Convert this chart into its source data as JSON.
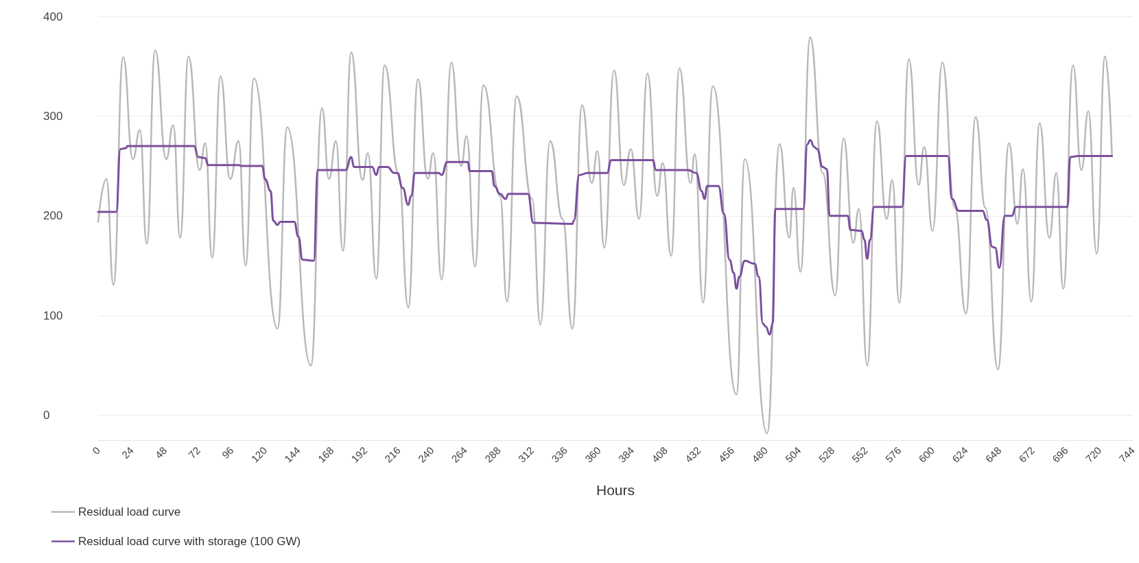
{
  "chart_data": {
    "type": "line",
    "xlabel": "Hours",
    "xlim": [
      0,
      744
    ],
    "xticks": [
      0,
      24,
      48,
      72,
      96,
      120,
      144,
      168,
      192,
      216,
      240,
      264,
      288,
      312,
      336,
      360,
      384,
      408,
      432,
      456,
      480,
      504,
      528,
      552,
      576,
      600,
      624,
      648,
      672,
      696,
      720,
      744
    ],
    "ylim": [
      -25,
      400
    ],
    "yticks": [
      0,
      100,
      200,
      300,
      400
    ],
    "grid": "y",
    "legend": "bottom left",
    "marker": "none",
    "series": [
      {
        "name": "Residual load curve",
        "color": "#b8b8b8",
        "x": [
          0,
          6,
          11,
          18,
          25,
          30,
          35,
          41,
          49,
          54,
          59,
          65,
          73,
          77,
          82,
          88,
          95,
          101,
          106,
          112,
          129,
          136,
          153,
          161,
          166,
          171,
          176,
          182,
          190,
          194,
          200,
          206,
          216,
          223,
          230,
          237,
          241,
          247,
          254,
          261,
          265,
          271,
          277,
          289,
          294,
          301,
          312,
          318,
          325,
          334,
          341,
          348,
          355,
          359,
          364,
          371,
          378,
          383,
          389,
          395,
          402,
          406,
          412,
          418,
          426,
          429,
          435,
          442,
          459,
          465,
          481,
          490,
          497,
          500,
          505,
          512,
          521,
          530,
          536,
          543,
          547,
          553,
          560,
          567,
          571,
          576,
          583,
          590,
          594,
          600,
          607,
          616,
          624,
          631,
          638,
          647,
          655,
          661,
          665,
          671,
          677,
          684,
          689,
          694,
          701,
          707,
          712,
          718,
          724,
          729
        ],
        "values": [
          194,
          237,
          131,
          359,
          257,
          286,
          172,
          366,
          257,
          291,
          178,
          360,
          246,
          273,
          158,
          340,
          237,
          275,
          150,
          338,
          87,
          289,
          50,
          308,
          237,
          275,
          165,
          364,
          236,
          263,
          137,
          351,
          243,
          108,
          337,
          237,
          263,
          136,
          354,
          250,
          280,
          149,
          331,
          220,
          114,
          320,
          217,
          91,
          275,
          197,
          87,
          311,
          233,
          265,
          168,
          346,
          231,
          267,
          197,
          343,
          220,
          253,
          160,
          348,
          233,
          262,
          113,
          330,
          21,
          257,
          -18,
          272,
          178,
          228,
          144,
          379,
          243,
          120,
          278,
          173,
          207,
          50,
          295,
          197,
          236,
          113,
          357,
          231,
          269,
          185,
          354,
          208,
          102,
          299,
          208,
          46,
          273,
          192,
          247,
          114,
          293,
          178,
          243,
          127,
          351,
          246,
          305,
          162,
          360,
          260
        ]
      },
      {
        "name": "Residual load curve with storage (100 GW)",
        "color": "#7b4f9d",
        "x": [
          0,
          13,
          16,
          20,
          21,
          69,
          72,
          77,
          79,
          101,
          103,
          118,
          120,
          124,
          126,
          129,
          131,
          141,
          144,
          147,
          155,
          158,
          178,
          182,
          184,
          197,
          200,
          202,
          208,
          213,
          215,
          219,
          223,
          225,
          228,
          245,
          247,
          251,
          266,
          267,
          283,
          285,
          289,
          293,
          295,
          309,
          313,
          341,
          342,
          346,
          352,
          366,
          369,
          399,
          401,
          424,
          430,
          434,
          436,
          438,
          446,
          450,
          454,
          457,
          459,
          461,
          465,
          472,
          475,
          478,
          480,
          483,
          485,
          487,
          507,
          510,
          512,
          515,
          517,
          521,
          524,
          526,
          539,
          541,
          549,
          551,
          553,
          555,
          558,
          578,
          581,
          611,
          614,
          619,
          636,
          639,
          643,
          645,
          648,
          652,
          657,
          660,
          697,
          699,
          705,
          729
        ],
        "values": [
          204,
          204,
          267,
          268,
          270,
          270,
          259,
          258,
          251,
          251,
          250,
          250,
          237,
          225,
          195,
          191,
          194,
          194,
          179,
          156,
          155,
          246,
          246,
          259,
          249,
          249,
          241,
          249,
          249,
          243,
          243,
          228,
          211,
          220,
          243,
          243,
          241,
          254,
          254,
          245,
          245,
          230,
          222,
          217,
          222,
          222,
          193,
          192,
          195,
          241,
          243,
          243,
          256,
          256,
          246,
          246,
          243,
          225,
          217,
          230,
          230,
          202,
          156,
          143,
          127,
          139,
          155,
          152,
          139,
          92,
          89,
          81,
          92,
          207,
          207,
          272,
          276,
          269,
          267,
          249,
          247,
          200,
          200,
          186,
          185,
          176,
          157,
          176,
          209,
          209,
          260,
          260,
          217,
          205,
          205,
          196,
          169,
          168,
          148,
          200,
          200,
          209,
          209,
          259,
          260,
          260
        ]
      }
    ]
  }
}
